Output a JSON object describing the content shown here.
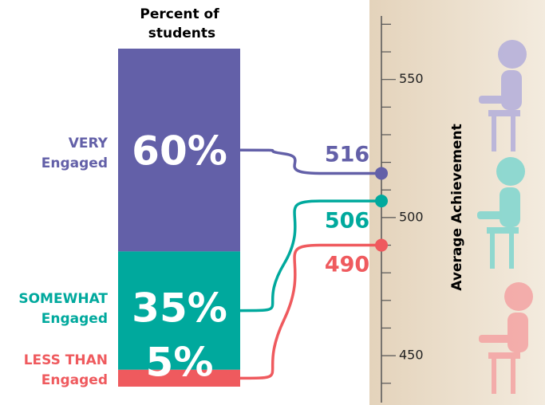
{
  "chart_data": {
    "type": "bar",
    "title": "Percent of students",
    "categories": [
      [
        "VERY",
        "Engaged"
      ],
      [
        "SOMEWHAT",
        "Engaged"
      ],
      [
        "LESS THAN",
        "Engaged"
      ]
    ],
    "values": [
      60,
      35,
      5
    ],
    "value_labels": [
      "60%",
      "35%",
      "5%"
    ],
    "colors": [
      "#6360a8",
      "#00a99d",
      "#ef5a5e"
    ],
    "achievement": {
      "y_label": "Average Achievement",
      "values": [
        516,
        506,
        490
      ],
      "ylim": [
        433,
        573
      ],
      "yticks": [
        450,
        500,
        550
      ],
      "minor_yticks": [
        440,
        460,
        470,
        480,
        490,
        510,
        520,
        530,
        540,
        560,
        570
      ]
    }
  }
}
